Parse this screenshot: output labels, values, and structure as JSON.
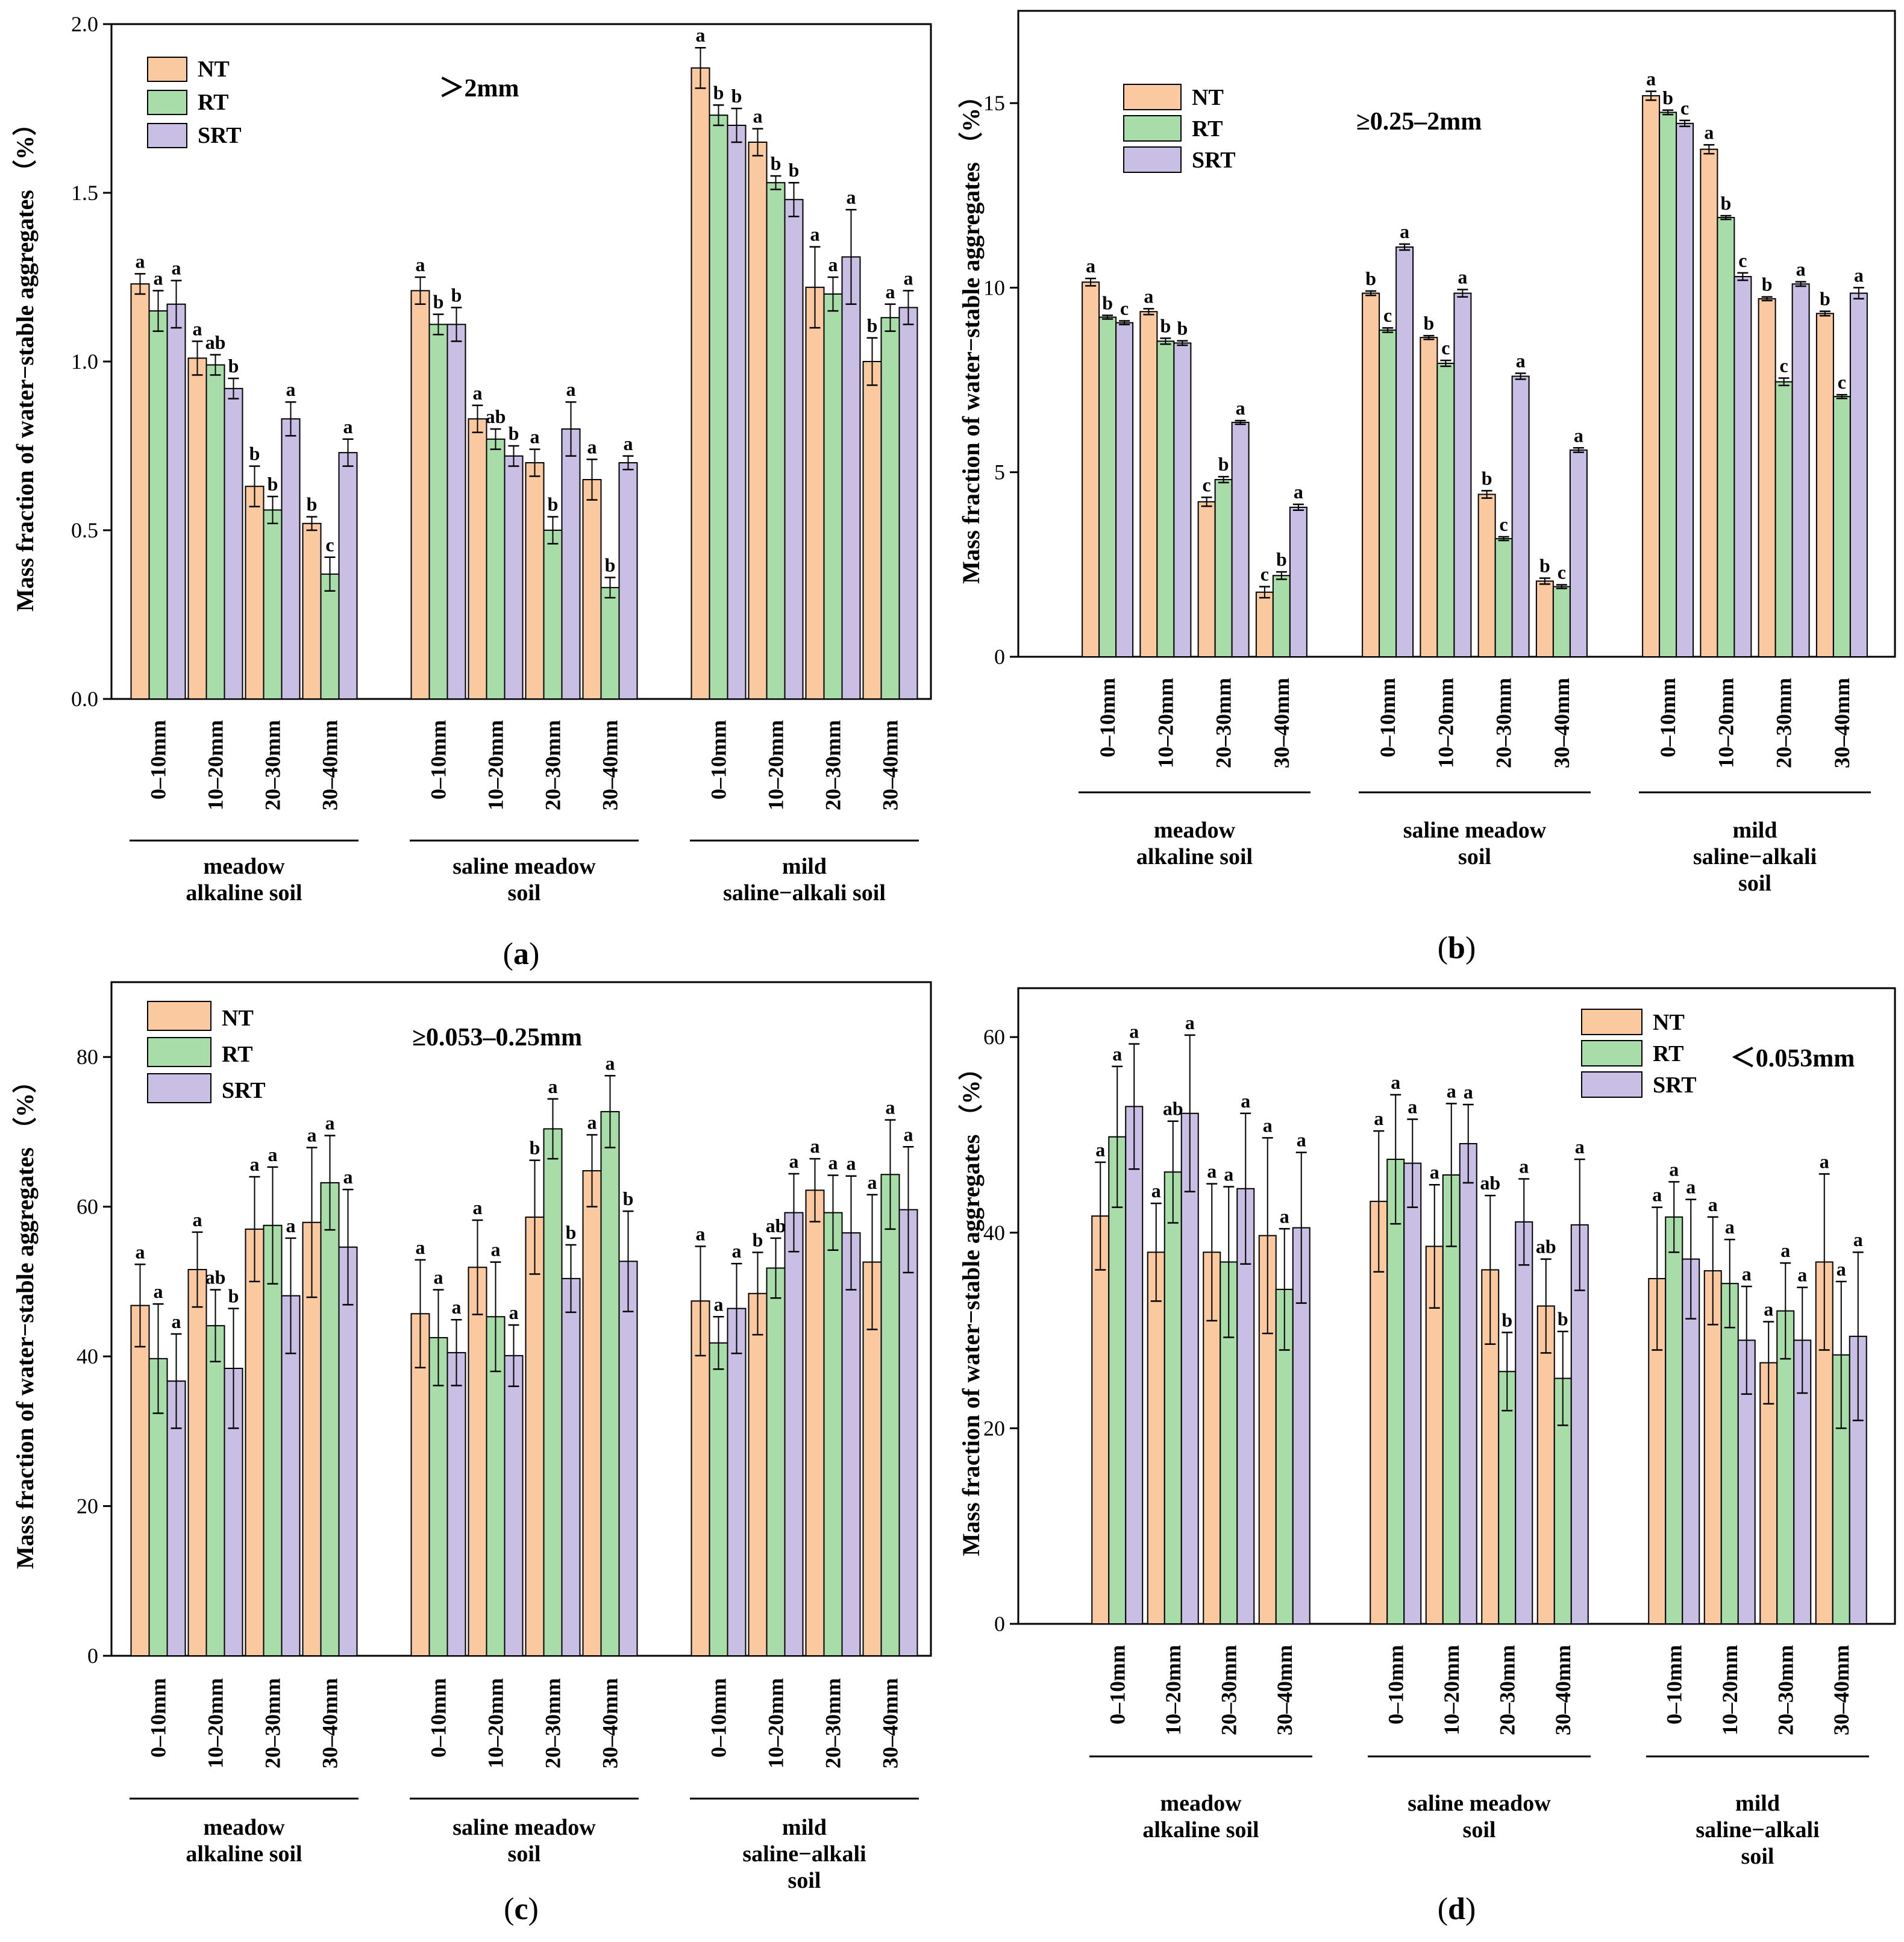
{
  "figure": {
    "series_names": [
      "NT",
      "RT",
      "SRT"
    ],
    "colors": {
      "NT": "#FBC9A0",
      "RT": "#A8DCA8",
      "SRT": "#C9BEE3"
    }
  },
  "chart_data": [
    {
      "type": "bar",
      "panel_label": "a",
      "title": "＞2mm",
      "ylabel": "Mass fraction of water−stable aggregates （%）",
      "ylim": [
        0,
        2.0
      ],
      "yticks": [
        "0.0",
        "0.5",
        "1.0",
        "1.5",
        "2.0"
      ],
      "groups": [
        "meadow alkaline soil",
        "saline meadow soil",
        "mild saline−alkali soil"
      ],
      "group_lines": [
        [
          "meadow",
          "alkaline soil"
        ],
        [
          "saline meadow",
          "soil"
        ],
        [
          "mild",
          "saline−alkali soil"
        ]
      ],
      "categories": [
        "0–10mm",
        "10–20mm",
        "20–30mm",
        "30–40mm"
      ],
      "series": [
        {
          "name": "NT",
          "values": [
            [
              1.23,
              1.01,
              0.63,
              0.52
            ],
            [
              1.21,
              0.83,
              0.7,
              0.65
            ],
            [
              1.87,
              1.65,
              1.22,
              1.0
            ]
          ],
          "errors": [
            [
              0.03,
              0.05,
              0.06,
              0.02
            ],
            [
              0.04,
              0.04,
              0.04,
              0.06
            ],
            [
              0.06,
              0.04,
              0.12,
              0.07
            ]
          ],
          "letters": [
            [
              "a",
              "a",
              "b",
              "b"
            ],
            [
              "a",
              "a",
              "a",
              "a"
            ],
            [
              "a",
              "a",
              "a",
              "b"
            ]
          ]
        },
        {
          "name": "RT",
          "values": [
            [
              1.15,
              0.99,
              0.56,
              0.37
            ],
            [
              1.11,
              0.77,
              0.5,
              0.33
            ],
            [
              1.73,
              1.53,
              1.2,
              1.13
            ]
          ],
          "errors": [
            [
              0.06,
              0.03,
              0.04,
              0.05
            ],
            [
              0.03,
              0.03,
              0.04,
              0.03
            ],
            [
              0.03,
              0.02,
              0.05,
              0.04
            ]
          ],
          "letters": [
            [
              "a",
              "ab",
              "b",
              "c"
            ],
            [
              "b",
              "ab",
              "b",
              "b"
            ],
            [
              "b",
              "b",
              "a",
              "a"
            ]
          ]
        },
        {
          "name": "SRT",
          "values": [
            [
              1.17,
              0.92,
              0.83,
              0.73
            ],
            [
              1.11,
              0.72,
              0.8,
              0.7
            ],
            [
              1.7,
              1.48,
              1.31,
              1.16
            ]
          ],
          "errors": [
            [
              0.07,
              0.03,
              0.05,
              0.04
            ],
            [
              0.05,
              0.03,
              0.08,
              0.02
            ],
            [
              0.05,
              0.05,
              0.14,
              0.05
            ]
          ],
          "letters": [
            [
              "a",
              "b",
              "a",
              "a"
            ],
            [
              "b",
              "b",
              "a",
              "a"
            ],
            [
              "b",
              "b",
              "a",
              "a"
            ]
          ]
        }
      ]
    },
    {
      "type": "bar",
      "panel_label": "b",
      "title": "≥0.25–2mm",
      "ylabel": "Mass fraction of water−stable aggregates （%）",
      "ylim": [
        0,
        17.5
      ],
      "yticks": [
        "0",
        "5",
        "10",
        "15"
      ],
      "groups": [
        "meadow alkaline soil",
        "saline meadow soil",
        "mild saline−alkali soil"
      ],
      "group_lines": [
        [
          "meadow",
          "alkaline soil"
        ],
        [
          "saline meadow",
          "soil"
        ],
        [
          "mild",
          "saline−alkali",
          "soil"
        ]
      ],
      "categories": [
        "0–10mm",
        "10–20mm",
        "20–30mm",
        "30–40mm"
      ],
      "series": [
        {
          "name": "NT",
          "values": [
            [
              10.15,
              9.35,
              4.2,
              1.75
            ],
            [
              9.85,
              8.65,
              4.4,
              2.05
            ],
            [
              15.2,
              13.75,
              9.7,
              9.3
            ]
          ],
          "errors": [
            [
              0.1,
              0.08,
              0.12,
              0.15
            ],
            [
              0.06,
              0.05,
              0.1,
              0.08
            ],
            [
              0.12,
              0.12,
              0.05,
              0.06
            ]
          ],
          "letters": [
            [
              "a",
              "a",
              "c",
              "c"
            ],
            [
              "b",
              "b",
              "b",
              "b"
            ],
            [
              "a",
              "a",
              "b",
              "b"
            ]
          ]
        },
        {
          "name": "RT",
          "values": [
            [
              9.2,
              8.55,
              4.8,
              2.2
            ],
            [
              8.85,
              7.95,
              3.2,
              1.9
            ],
            [
              14.75,
              11.9,
              7.45,
              7.05
            ]
          ],
          "errors": [
            [
              0.05,
              0.08,
              0.08,
              0.1
            ],
            [
              0.06,
              0.08,
              0.05,
              0.05
            ],
            [
              0.06,
              0.05,
              0.1,
              0.05
            ]
          ],
          "letters": [
            [
              "b",
              "b",
              "b",
              "b"
            ],
            [
              "c",
              "c",
              "c",
              "c"
            ],
            [
              "b",
              "b",
              "c",
              "c"
            ]
          ]
        },
        {
          "name": "SRT",
          "values": [
            [
              9.05,
              8.5,
              6.35,
              4.05
            ],
            [
              11.1,
              9.85,
              7.6,
              5.6
            ],
            [
              14.45,
              10.3,
              10.1,
              9.85
            ]
          ],
          "errors": [
            [
              0.05,
              0.06,
              0.05,
              0.08
            ],
            [
              0.08,
              0.1,
              0.08,
              0.06
            ],
            [
              0.08,
              0.1,
              0.06,
              0.15
            ]
          ],
          "letters": [
            [
              "c",
              "b",
              "a",
              "a"
            ],
            [
              "a",
              "a",
              "a",
              "a"
            ],
            [
              "c",
              "c",
              "a",
              "a"
            ]
          ]
        }
      ]
    },
    {
      "type": "bar",
      "panel_label": "c",
      "title": "≥0.053–0.25mm",
      "ylabel": "Mass fraction of water−stable aggregates （%）",
      "ylim": [
        0,
        90
      ],
      "yticks": [
        "0",
        "20",
        "40",
        "60",
        "80"
      ],
      "groups": [
        "meadow alkaline soil",
        "saline meadow soil",
        "mild saline−alkali soil"
      ],
      "group_lines": [
        [
          "meadow",
          "alkaline soil"
        ],
        [
          "saline meadow",
          "soil"
        ],
        [
          "mild",
          "saline−alkali",
          "soil"
        ]
      ],
      "categories": [
        "0–10mm",
        "10–20mm",
        "20–30mm",
        "30–40mm"
      ],
      "series": [
        {
          "name": "NT",
          "values": [
            [
              46.8,
              51.6,
              57.0,
              57.9
            ],
            [
              45.7,
              51.9,
              58.6,
              64.8
            ],
            [
              47.4,
              48.4,
              62.2,
              52.6
            ]
          ],
          "errors": [
            [
              5.5,
              5.0,
              7.0,
              10.0
            ],
            [
              7.2,
              6.3,
              7.6,
              4.8
            ],
            [
              7.3,
              5.5,
              4.2,
              9.0
            ]
          ],
          "letters": [
            [
              "a",
              "a",
              "a",
              "a"
            ],
            [
              "a",
              "a",
              "b",
              "a"
            ],
            [
              "a",
              "b",
              "a",
              "a"
            ]
          ]
        },
        {
          "name": "RT",
          "values": [
            [
              39.7,
              44.1,
              57.5,
              63.2
            ],
            [
              42.5,
              45.3,
              70.4,
              72.7
            ],
            [
              41.8,
              51.8,
              59.2,
              64.3
            ]
          ],
          "errors": [
            [
              7.3,
              4.8,
              7.8,
              6.3
            ],
            [
              6.4,
              7.3,
              4.0,
              4.8
            ],
            [
              3.5,
              4.0,
              5.0,
              7.3
            ]
          ],
          "letters": [
            [
              "a",
              "ab",
              "a",
              "a"
            ],
            [
              "a",
              "a",
              "a",
              "a"
            ],
            [
              "a",
              "ab",
              "a",
              "a"
            ]
          ]
        },
        {
          "name": "SRT",
          "values": [
            [
              36.7,
              38.4,
              48.1,
              54.6
            ],
            [
              40.5,
              40.1,
              50.4,
              52.7
            ],
            [
              46.4,
              59.2,
              56.5,
              59.6
            ]
          ],
          "errors": [
            [
              6.3,
              8.0,
              7.7,
              7.7
            ],
            [
              4.4,
              4.1,
              4.5,
              6.7
            ],
            [
              6.0,
              5.2,
              7.6,
              8.4
            ]
          ],
          "letters": [
            [
              "a",
              "b",
              "a",
              "a"
            ],
            [
              "a",
              "a",
              "b",
              "b"
            ],
            [
              "a",
              "a",
              "a",
              "a"
            ]
          ]
        }
      ]
    },
    {
      "type": "bar",
      "panel_label": "d",
      "title": "＜0.053mm",
      "ylabel": "Mass fraction of water−stable aggregates （%）",
      "ylim": [
        0,
        65
      ],
      "yticks": [
        "0",
        "20",
        "40",
        "60"
      ],
      "groups": [
        "meadow alkaline soil",
        "saline meadow soil",
        "mild saline−alkali soil"
      ],
      "group_lines": [
        [
          "meadow",
          "alkaline soil"
        ],
        [
          "saline meadow",
          "soil"
        ],
        [
          "mild",
          "saline−alkali",
          "soil"
        ]
      ],
      "categories": [
        "0–10mm",
        "10–20mm",
        "20–30mm",
        "30–40mm"
      ],
      "series": [
        {
          "name": "NT",
          "values": [
            [
              41.7,
              38.0,
              38.0,
              39.7
            ],
            [
              43.2,
              38.6,
              36.2,
              32.5
            ],
            [
              35.3,
              36.1,
              26.7,
              37.0
            ]
          ],
          "errors": [
            [
              5.5,
              5.0,
              7.0,
              10.0
            ],
            [
              7.2,
              6.3,
              7.6,
              4.8
            ],
            [
              7.3,
              5.5,
              4.2,
              9.0
            ]
          ],
          "letters": [
            [
              "a",
              "a",
              "a",
              "a"
            ],
            [
              "a",
              "a",
              "ab",
              "ab"
            ],
            [
              "a",
              "a",
              "a",
              "a"
            ]
          ]
        },
        {
          "name": "RT",
          "values": [
            [
              49.8,
              46.2,
              37.0,
              34.2
            ],
            [
              47.5,
              45.9,
              25.8,
              25.1
            ],
            [
              41.6,
              34.8,
              32.0,
              27.5
            ]
          ],
          "errors": [
            [
              7.2,
              5.2,
              7.7,
              6.2
            ],
            [
              6.6,
              7.3,
              4.0,
              4.8
            ],
            [
              3.6,
              4.5,
              4.9,
              7.5
            ]
          ],
          "letters": [
            [
              "a",
              "ab",
              "a",
              "a"
            ],
            [
              "a",
              "a",
              "b",
              "b"
            ],
            [
              "a",
              "a",
              "a",
              "a"
            ]
          ]
        },
        {
          "name": "SRT",
          "values": [
            [
              52.9,
              52.2,
              44.5,
              40.5
            ],
            [
              47.1,
              49.1,
              41.1,
              40.8
            ],
            [
              37.3,
              29.0,
              29.0,
              29.4
            ]
          ],
          "errors": [
            [
              6.4,
              8.0,
              7.7,
              7.7
            ],
            [
              4.5,
              4.0,
              4.4,
              6.7
            ],
            [
              6.1,
              5.5,
              5.4,
              8.6
            ]
          ],
          "letters": [
            [
              "a",
              "a",
              "a",
              "a"
            ],
            [
              "a",
              "a",
              "a",
              "a"
            ],
            [
              "a",
              "a",
              "a",
              "a"
            ]
          ]
        }
      ]
    }
  ]
}
